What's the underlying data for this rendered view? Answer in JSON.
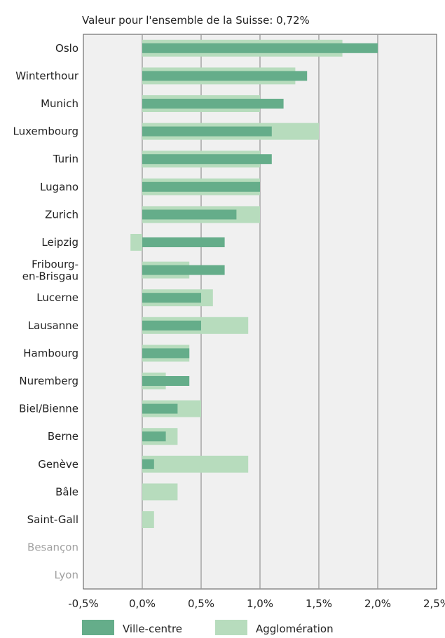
{
  "chart_data": {
    "type": "bar",
    "orientation": "horizontal",
    "subtitle": "Valeur pour l'ensemble de la Suisse: 0,72%",
    "categories": [
      "Oslo",
      "Winterthour",
      "Munich",
      "Luxembourg",
      "Turin",
      "Lugano",
      "Zurich",
      "Leipzig",
      "Fribourg-en-Brisgau",
      "Lucerne",
      "Lausanne",
      "Hambourg",
      "Nuremberg",
      "Biel/Bienne",
      "Berne",
      "Genève",
      "Bâle",
      "Saint-Gall",
      "Besançon",
      "Lyon"
    ],
    "category_lines": [
      [
        "Oslo"
      ],
      [
        "Winterthour"
      ],
      [
        "Munich"
      ],
      [
        "Luxembourg"
      ],
      [
        "Turin"
      ],
      [
        "Lugano"
      ],
      [
        "Zurich"
      ],
      [
        "Leipzig"
      ],
      [
        "Fribourg-",
        "en-Brisgau"
      ],
      [
        "Lucerne"
      ],
      [
        "Lausanne"
      ],
      [
        "Hambourg"
      ],
      [
        "Nuremberg"
      ],
      [
        "Biel/Bienne"
      ],
      [
        "Berne"
      ],
      [
        "Genève"
      ],
      [
        "Bâle"
      ],
      [
        "Saint-Gall"
      ],
      [
        "Besançon"
      ],
      [
        "Lyon"
      ]
    ],
    "muted_categories": [
      "Besançon",
      "Lyon"
    ],
    "series": [
      {
        "name": "Ville-centre",
        "color": "#65ad8a",
        "values": [
          2.0,
          1.4,
          1.2,
          1.1,
          1.1,
          1.0,
          0.8,
          0.7,
          0.7,
          0.5,
          0.5,
          0.4,
          0.4,
          0.3,
          0.2,
          0.1,
          null,
          null,
          null,
          null
        ]
      },
      {
        "name": "Agglomération",
        "color": "#b7dcbd",
        "values": [
          1.7,
          1.3,
          1.0,
          1.5,
          1.0,
          1.0,
          1.0,
          -0.1,
          0.4,
          0.6,
          0.9,
          0.4,
          0.2,
          0.5,
          0.3,
          0.9,
          0.3,
          0.1,
          null,
          null
        ]
      }
    ],
    "xlim": [
      -0.5,
      2.5
    ],
    "xticks": [
      -0.5,
      0.0,
      0.5,
      1.0,
      1.5,
      2.0,
      2.5
    ],
    "xtick_labels": [
      "-0,5%",
      "0,0%",
      "0,5%",
      "1,0%",
      "1,5%",
      "2,0%",
      "2,5%"
    ],
    "grid": true,
    "legend_position": "bottom",
    "colors": {
      "plot_background": "#f0f0f0",
      "gridline": "#999999",
      "frame": "#555555",
      "label": "#222222",
      "muted_label": "#a0a0a0"
    }
  }
}
